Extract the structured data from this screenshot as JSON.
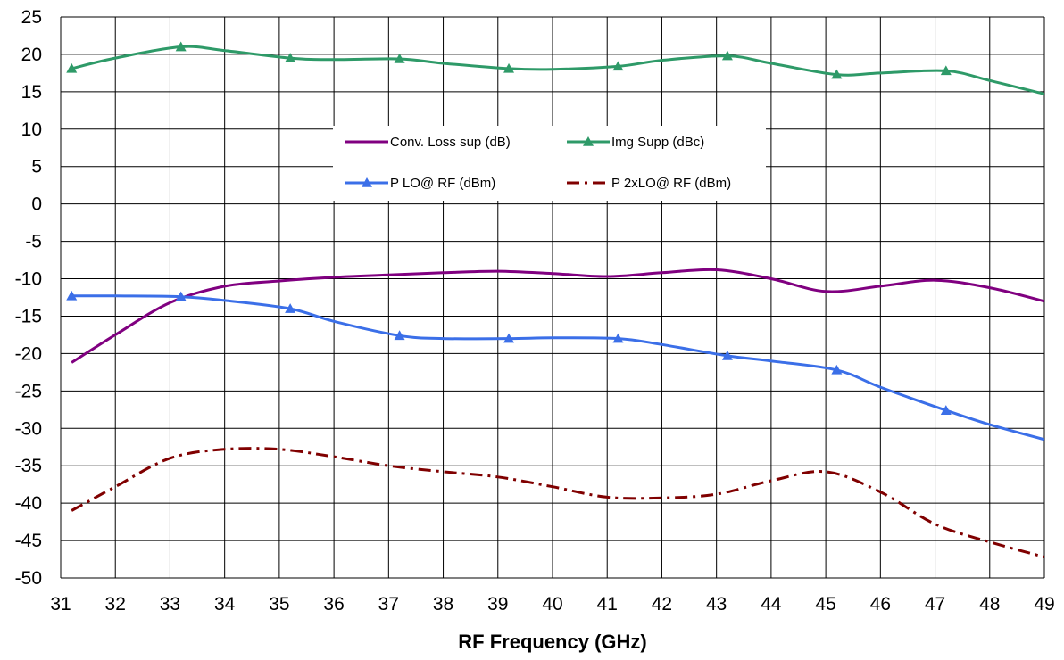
{
  "chart_data": {
    "type": "line",
    "title": "",
    "xlabel": "RF Frequency (GHz)",
    "ylabel": "",
    "xlim": [
      31,
      49
    ],
    "ylim": [
      -50,
      25
    ],
    "x_ticks": [
      31,
      32,
      33,
      34,
      35,
      36,
      37,
      38,
      39,
      40,
      41,
      42,
      43,
      44,
      45,
      46,
      47,
      48,
      49
    ],
    "y_ticks": [
      25,
      20,
      15,
      10,
      5,
      0,
      -5,
      -10,
      -15,
      -20,
      -25,
      -30,
      -35,
      -40,
      -45,
      -50
    ],
    "grid": true,
    "legend_position": "upper-center",
    "series": [
      {
        "name": "Conv. Loss sup (dB)",
        "color": "#800080",
        "line_style": "solid",
        "marker": "none",
        "x": [
          31.2,
          32,
          33,
          34,
          35,
          36,
          37,
          38,
          39,
          40,
          41,
          42,
          43,
          44,
          45,
          46,
          47,
          48,
          49
        ],
        "y": [
          -21.2,
          -17.5,
          -13.2,
          -11,
          -10.3,
          -9.8,
          -9.5,
          -9.2,
          -9,
          -9.3,
          -9.7,
          -9.2,
          -8.8,
          -10,
          -11.7,
          -11,
          -10.2,
          -11.2,
          -13
        ]
      },
      {
        "name": "Img Supp (dBc)",
        "color": "#2e9a68",
        "line_style": "solid",
        "marker": "triangle",
        "x": [
          31.2,
          32,
          33.2,
          34,
          35.2,
          36,
          37.2,
          38,
          39.2,
          40,
          41.2,
          42,
          43.2,
          44,
          45.2,
          46,
          47.2,
          48,
          49
        ],
        "y": [
          18.1,
          19.5,
          21,
          20.5,
          19.5,
          19.3,
          19.4,
          18.8,
          18.1,
          18,
          18.4,
          19.2,
          19.8,
          18.8,
          17.3,
          17.5,
          17.8,
          16.5,
          14.7
        ]
      },
      {
        "name": "P LO@ RF (dBm)",
        "color": "#3b6fe8",
        "line_style": "solid",
        "marker": "triangle",
        "x": [
          31.2,
          32,
          33.2,
          34,
          35.2,
          36,
          37.2,
          38,
          39.2,
          40,
          41.2,
          42,
          43.2,
          44,
          45.2,
          46,
          47.2,
          48,
          49
        ],
        "y": [
          -12.3,
          -12.3,
          -12.4,
          -12.9,
          -14,
          -15.7,
          -17.6,
          -18,
          -18,
          -17.9,
          -18,
          -18.8,
          -20.3,
          -21,
          -22.2,
          -24.5,
          -27.6,
          -29.5,
          -31.5
        ]
      },
      {
        "name": "P 2xLO@ RF (dBm)",
        "color": "#800000",
        "line_style": "dash-dot",
        "marker": "none",
        "x": [
          31.2,
          32,
          33,
          34,
          35,
          36,
          37,
          38,
          39,
          40,
          41,
          42,
          43,
          44,
          45,
          46,
          47,
          48,
          49
        ],
        "y": [
          -41,
          -37.8,
          -34,
          -32.8,
          -32.8,
          -33.8,
          -35,
          -35.8,
          -36.5,
          -37.8,
          -39.2,
          -39.3,
          -38.8,
          -37,
          -35.8,
          -38.5,
          -42.8,
          -45.2,
          -47.2
        ]
      }
    ]
  }
}
